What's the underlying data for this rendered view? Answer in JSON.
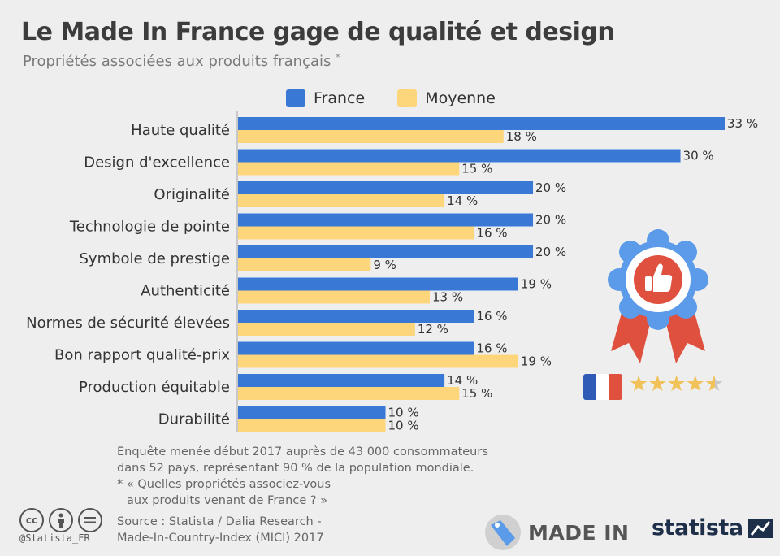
{
  "header": {
    "title": "Le Made In France gage de qualité et design",
    "subtitle": "Propriétés associées aux produits français",
    "subtitle_mark": "*"
  },
  "legend": {
    "france": "France",
    "moyenne": "Moyenne"
  },
  "colors": {
    "france": "#3a78d6",
    "moyenne": "#fdd57a",
    "axis": "#bbbbbb",
    "rosette_blue": "#5b9be9",
    "rosette_red": "#e0503e"
  },
  "chart_data": {
    "type": "bar",
    "orientation": "horizontal",
    "categories": [
      "Haute qualité",
      "Design d'excellence",
      "Originalité",
      "Technologie de pointe",
      "Symbole de prestige",
      "Authenticité",
      "Normes de sécurité élevées",
      "Bon rapport qualité-prix",
      "Production équitable",
      "Durabilité"
    ],
    "series": [
      {
        "name": "France",
        "values": [
          33,
          30,
          20,
          20,
          20,
          19,
          16,
          16,
          14,
          10
        ],
        "labels": [
          "33 %",
          "30 %",
          "20 %",
          "20 %",
          "20 %",
          "19 %",
          "16 %",
          "16 %",
          "14 %",
          "10 %"
        ]
      },
      {
        "name": "Moyenne",
        "values": [
          18,
          15,
          14,
          16,
          9,
          13,
          12,
          19,
          15,
          10
        ],
        "labels": [
          "18 %",
          "15 %",
          "14 %",
          "16 %",
          "9 %",
          "13 %",
          "12 %",
          "19 %",
          "15 %",
          "10 %"
        ]
      }
    ],
    "xlim": [
      0,
      33
    ],
    "legend_position": "top",
    "grid": false
  },
  "notes": {
    "line1": "Enquête menée début 2017 auprès de 43 000 consommateurs",
    "line2": "dans 52 pays, représentant 90 % de la population mondiale.",
    "line3": "* « Quelles propriétés associez-vous",
    "line4": "aux produits venant de France ? »"
  },
  "source": {
    "line1": "Source : Statista / Dalia Research -",
    "line2": "Made-In-Country-Index (MICI) 2017"
  },
  "footer": {
    "handle": "@Statista_FR",
    "made_in": "MADE IN",
    "brand": "statista",
    "cc_icons": [
      "cc-icon",
      "by-icon",
      "nd-icon"
    ]
  }
}
